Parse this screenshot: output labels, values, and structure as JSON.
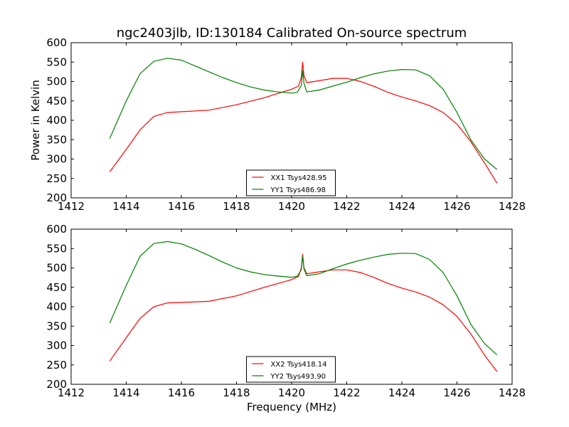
{
  "chart_data": [
    {
      "type": "line",
      "title": "ngc2403jlb, ID:130184 Calibrated On-source spectrum",
      "xlabel": "",
      "ylabel": "Power in Kelvin",
      "xlim": [
        1412,
        1428
      ],
      "ylim": [
        200,
        600
      ],
      "xticks": [
        "1412",
        "1414",
        "1416",
        "1418",
        "1420",
        "1422",
        "1424",
        "1426",
        "1428"
      ],
      "yticks": [
        "200",
        "250",
        "300",
        "350",
        "400",
        "450",
        "500",
        "550",
        "600"
      ],
      "legend": "lower-center",
      "series": [
        {
          "name": "XX1 Tsys428.95",
          "color": "#ff0000",
          "x": [
            1413.4,
            1414.0,
            1414.5,
            1415.0,
            1415.5,
            1416.0,
            1417.0,
            1418.0,
            1419.0,
            1420.0,
            1420.25,
            1420.35,
            1420.4,
            1420.45,
            1420.55,
            1421.0,
            1421.5,
            1422.0,
            1422.5,
            1423.0,
            1423.5,
            1424.0,
            1424.5,
            1425.0,
            1425.5,
            1426.0,
            1426.5,
            1427.0,
            1427.45
          ],
          "y": [
            267,
            325,
            375,
            410,
            420,
            422,
            426,
            440,
            458,
            480,
            488,
            510,
            550,
            515,
            497,
            502,
            508,
            508,
            500,
            487,
            472,
            460,
            450,
            438,
            420,
            390,
            345,
            290,
            238
          ]
        },
        {
          "name": "YY1 Tsys486.98",
          "color": "#008000",
          "x": [
            1413.4,
            1414.0,
            1414.5,
            1415.0,
            1415.5,
            1416.0,
            1416.5,
            1417.0,
            1417.5,
            1418.0,
            1418.5,
            1419.0,
            1419.5,
            1420.0,
            1420.2,
            1420.35,
            1420.4,
            1420.45,
            1420.55,
            1421.0,
            1421.5,
            1422.0,
            1422.5,
            1423.0,
            1423.5,
            1424.0,
            1424.5,
            1425.0,
            1425.5,
            1426.0,
            1426.5,
            1427.0,
            1427.45
          ],
          "y": [
            353,
            450,
            520,
            552,
            560,
            555,
            540,
            525,
            510,
            497,
            486,
            478,
            473,
            470,
            472,
            490,
            528,
            495,
            473,
            478,
            488,
            498,
            510,
            520,
            527,
            531,
            530,
            515,
            480,
            420,
            350,
            300,
            273
          ]
        }
      ]
    },
    {
      "type": "line",
      "title": "",
      "xlabel": "Frequency (MHz)",
      "ylabel": "",
      "xlim": [
        1412,
        1428
      ],
      "ylim": [
        200,
        600
      ],
      "xticks": [
        "1412",
        "1414",
        "1416",
        "1418",
        "1420",
        "1422",
        "1424",
        "1426",
        "1428"
      ],
      "yticks": [
        "200",
        "250",
        "300",
        "350",
        "400",
        "450",
        "500",
        "550",
        "600"
      ],
      "legend": "lower-center",
      "series": [
        {
          "name": "XX2 Tsys418.14",
          "color": "#ff0000",
          "x": [
            1413.4,
            1414.0,
            1414.5,
            1415.0,
            1415.5,
            1416.0,
            1417.0,
            1418.0,
            1419.0,
            1420.0,
            1420.25,
            1420.35,
            1420.4,
            1420.45,
            1420.55,
            1421.0,
            1421.5,
            1422.0,
            1422.5,
            1423.0,
            1423.5,
            1424.0,
            1424.5,
            1425.0,
            1425.5,
            1426.0,
            1426.5,
            1427.0,
            1427.45
          ],
          "y": [
            260,
            320,
            370,
            400,
            410,
            411,
            414,
            428,
            450,
            470,
            478,
            500,
            535,
            500,
            485,
            490,
            495,
            495,
            488,
            475,
            460,
            448,
            438,
            425,
            405,
            375,
            330,
            275,
            233
          ]
        },
        {
          "name": "YY2 Tsys493.90",
          "color": "#008000",
          "x": [
            1413.4,
            1414.0,
            1414.5,
            1415.0,
            1415.5,
            1416.0,
            1416.5,
            1417.0,
            1417.5,
            1418.0,
            1418.5,
            1419.0,
            1419.5,
            1420.0,
            1420.2,
            1420.35,
            1420.4,
            1420.45,
            1420.55,
            1421.0,
            1421.5,
            1422.0,
            1422.5,
            1423.0,
            1423.5,
            1424.0,
            1424.5,
            1425.0,
            1425.5,
            1426.0,
            1426.5,
            1427.0,
            1427.45
          ],
          "y": [
            358,
            455,
            530,
            563,
            568,
            562,
            548,
            532,
            515,
            500,
            490,
            483,
            479,
            476,
            478,
            495,
            530,
            497,
            480,
            485,
            498,
            510,
            520,
            528,
            535,
            538,
            537,
            522,
            488,
            428,
            355,
            305,
            276
          ]
        }
      ]
    }
  ]
}
